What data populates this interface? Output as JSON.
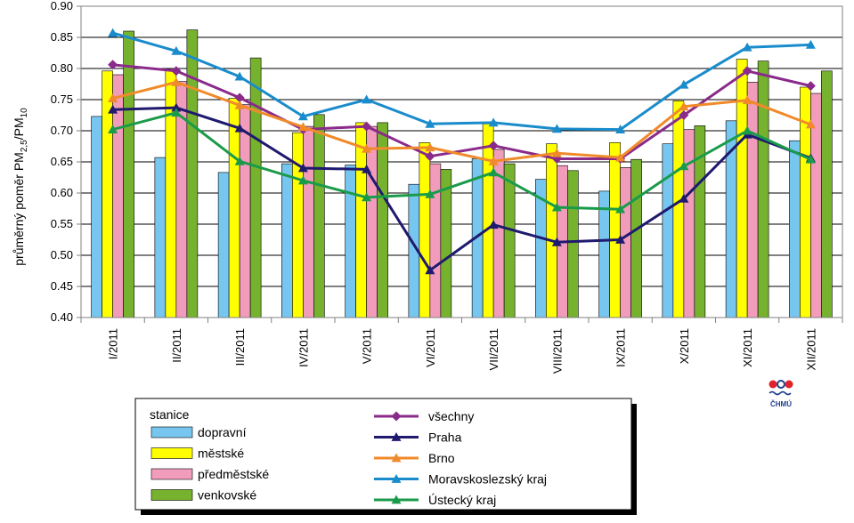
{
  "chart_data": {
    "type": "bar",
    "title": "",
    "xlabel": "",
    "ylabel": {
      "main": "průměrný poměr PM",
      "sub1": "2,5",
      "slash": "/PM",
      "sub2": "10"
    },
    "ylim": [
      0.4,
      0.9
    ],
    "yticks": [
      "0.40",
      "0.45",
      "0.50",
      "0.55",
      "0.60",
      "0.65",
      "0.70",
      "0.75",
      "0.80",
      "0.85",
      "0.90"
    ],
    "categories": [
      "I/2011",
      "II/2011",
      "III/2011",
      "IV/2011",
      "V/2011",
      "VI/2011",
      "VII/2011",
      "VIII/2011",
      "IX/2011",
      "X/2011",
      "XI/2011",
      "XII/2011"
    ],
    "legend_title": "stanice",
    "bar_series": [
      {
        "name": "dopravní",
        "color": "#77c6f0",
        "values": [
          0.723,
          0.657,
          0.633,
          0.647,
          0.645,
          0.614,
          0.655,
          0.622,
          0.603,
          0.679,
          0.716,
          0.684
        ]
      },
      {
        "name": "městské",
        "color": "#ffff00",
        "values": [
          0.796,
          0.797,
          0.752,
          0.697,
          0.713,
          0.681,
          0.711,
          0.679,
          0.681,
          0.748,
          0.815,
          0.77
        ]
      },
      {
        "name": "předměstské",
        "color": "#f29cbc",
        "values": [
          0.79,
          0.779,
          0.742,
          0.707,
          0.707,
          0.647,
          0.67,
          0.644,
          0.641,
          0.702,
          0.778,
          0.76
        ]
      },
      {
        "name": "venkovské",
        "color": "#77b22e",
        "values": [
          0.86,
          0.862,
          0.817,
          0.726,
          0.713,
          0.638,
          0.647,
          0.636,
          0.654,
          0.708,
          0.812,
          0.796
        ]
      }
    ],
    "line_series": [
      {
        "name": "všechny",
        "color": "#8a2a8a",
        "marker": "diamond",
        "values": [
          0.806,
          0.796,
          0.753,
          0.702,
          0.707,
          0.659,
          0.676,
          0.655,
          0.655,
          0.725,
          0.796,
          0.772
        ]
      },
      {
        "name": "Praha",
        "color": "#1f1a6e",
        "marker": "triangle",
        "values": [
          0.734,
          0.737,
          0.704,
          0.64,
          0.638,
          0.476,
          0.549,
          0.521,
          0.525,
          0.591,
          0.694,
          0.656
        ]
      },
      {
        "name": "Brno",
        "color": "#f08a2a",
        "marker": "triangle",
        "values": [
          0.752,
          0.778,
          0.741,
          0.706,
          0.671,
          0.673,
          0.651,
          0.664,
          0.657,
          0.739,
          0.749,
          0.71
        ]
      },
      {
        "name": "Moravskoslezský kraj",
        "color": "#1a8ccc",
        "marker": "triangle",
        "values": [
          0.857,
          0.828,
          0.787,
          0.723,
          0.75,
          0.711,
          0.713,
          0.703,
          0.702,
          0.774,
          0.834,
          0.838
        ]
      },
      {
        "name": "Ústecký kraj",
        "color": "#1a9b4a",
        "marker": "triangle",
        "values": [
          0.702,
          0.729,
          0.651,
          0.62,
          0.593,
          0.598,
          0.633,
          0.577,
          0.574,
          0.643,
          0.7,
          0.654
        ]
      }
    ],
    "grid": true,
    "legend_position": "bottom"
  },
  "logo": {
    "text": "ČHMÚ",
    "color_red": "#e2222a",
    "color_blue": "#1f3f8f"
  }
}
